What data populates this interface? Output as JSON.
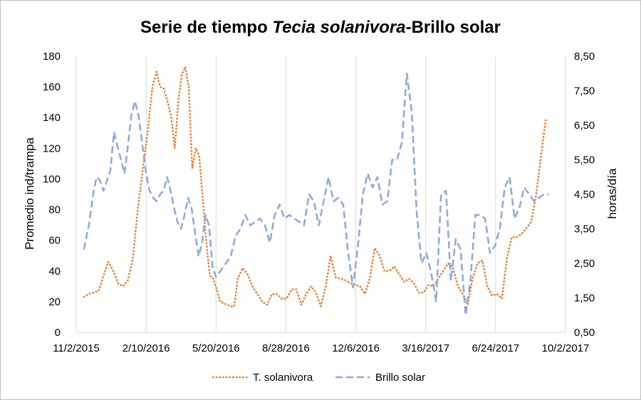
{
  "chart_data": {
    "type": "line",
    "title_prefix": "Serie de tiempo ",
    "title_italic": "Tecia solanivora",
    "title_suffix": "-Brillo solar",
    "ylabel_left": "Promedio ind/trampa",
    "ylabel_right": "horas/día",
    "x_axis": {
      "min": "2015-11-02",
      "max": "2017-10-02",
      "ticks": [
        {
          "date": "2015-11-02",
          "label": "11/2/2015"
        },
        {
          "date": "2016-02-10",
          "label": "2/10/2016"
        },
        {
          "date": "2016-05-20",
          "label": "5/20/2016"
        },
        {
          "date": "2016-08-28",
          "label": "8/28/2016"
        },
        {
          "date": "2016-12-06",
          "label": "12/6/2016"
        },
        {
          "date": "2017-03-16",
          "label": "3/16/2017"
        },
        {
          "date": "2017-06-24",
          "label": "6/24/2017"
        },
        {
          "date": "2017-10-02",
          "label": "10/2/2017"
        }
      ]
    },
    "y_left": {
      "min": 0,
      "max": 180,
      "ticks": [
        "0",
        "20",
        "40",
        "60",
        "80",
        "100",
        "120",
        "140",
        "160",
        "180"
      ]
    },
    "y_right": {
      "min": 0.5,
      "max": 8.5,
      "ticks": [
        "0,50",
        "1,50",
        "2,50",
        "3,50",
        "4,50",
        "5,50",
        "6,50",
        "7,50",
        "8,50"
      ]
    },
    "grid": "vertical",
    "legend_position": "bottom",
    "series": [
      {
        "name": "T. solanivora",
        "axis": "left",
        "color": "#ed7d31",
        "style": "dotted",
        "points": [
          [
            "2015-11-13",
            23
          ],
          [
            "2015-11-20",
            25
          ],
          [
            "2015-11-27",
            26
          ],
          [
            "2015-12-04",
            27
          ],
          [
            "2015-12-11",
            37
          ],
          [
            "2015-12-18",
            46
          ],
          [
            "2015-12-25",
            40
          ],
          [
            "2016-01-01",
            32
          ],
          [
            "2016-01-08",
            30
          ],
          [
            "2016-01-15",
            34
          ],
          [
            "2016-01-22",
            48
          ],
          [
            "2016-01-29",
            80
          ],
          [
            "2016-02-05",
            105
          ],
          [
            "2016-02-12",
            130
          ],
          [
            "2016-02-19",
            160
          ],
          [
            "2016-02-25",
            170
          ],
          [
            "2016-03-01",
            160
          ],
          [
            "2016-03-06",
            159
          ],
          [
            "2016-03-12",
            150
          ],
          [
            "2016-03-17",
            140
          ],
          [
            "2016-03-22",
            120
          ],
          [
            "2016-03-27",
            150
          ],
          [
            "2016-04-01",
            168
          ],
          [
            "2016-04-06",
            173
          ],
          [
            "2016-04-11",
            160
          ],
          [
            "2016-04-16",
            107
          ],
          [
            "2016-04-21",
            120
          ],
          [
            "2016-04-26",
            115
          ],
          [
            "2016-05-01",
            87
          ],
          [
            "2016-05-06",
            60
          ],
          [
            "2016-05-11",
            37
          ],
          [
            "2016-05-16",
            35
          ],
          [
            "2016-05-21",
            28
          ],
          [
            "2016-05-26",
            20
          ],
          [
            "2016-05-31",
            19
          ],
          [
            "2016-06-05",
            18
          ],
          [
            "2016-06-10",
            17
          ],
          [
            "2016-06-15",
            17
          ],
          [
            "2016-06-20",
            35
          ],
          [
            "2016-06-27",
            42
          ],
          [
            "2016-07-04",
            38
          ],
          [
            "2016-07-11",
            30
          ],
          [
            "2016-07-18",
            25
          ],
          [
            "2016-07-25",
            20
          ],
          [
            "2016-08-01",
            18
          ],
          [
            "2016-08-08",
            25
          ],
          [
            "2016-08-15",
            25
          ],
          [
            "2016-08-22",
            22
          ],
          [
            "2016-08-29",
            22
          ],
          [
            "2016-09-05",
            28
          ],
          [
            "2016-09-12",
            28
          ],
          [
            "2016-09-19",
            18
          ],
          [
            "2016-09-26",
            25
          ],
          [
            "2016-10-03",
            30
          ],
          [
            "2016-10-10",
            26
          ],
          [
            "2016-10-17",
            17
          ],
          [
            "2016-10-24",
            30
          ],
          [
            "2016-10-31",
            50
          ],
          [
            "2016-11-07",
            36
          ],
          [
            "2016-11-14",
            35
          ],
          [
            "2016-11-21",
            34
          ],
          [
            "2016-11-28",
            32
          ],
          [
            "2016-12-05",
            31
          ],
          [
            "2016-12-12",
            30
          ],
          [
            "2016-12-19",
            25
          ],
          [
            "2016-12-26",
            35
          ],
          [
            "2017-01-02",
            55
          ],
          [
            "2017-01-09",
            50
          ],
          [
            "2017-01-16",
            40
          ],
          [
            "2017-01-23",
            40
          ],
          [
            "2017-01-30",
            43
          ],
          [
            "2017-02-06",
            38
          ],
          [
            "2017-02-13",
            33
          ],
          [
            "2017-02-20",
            35
          ],
          [
            "2017-02-27",
            32
          ],
          [
            "2017-03-06",
            26
          ],
          [
            "2017-03-13",
            26
          ],
          [
            "2017-03-20",
            31
          ],
          [
            "2017-03-27",
            30
          ],
          [
            "2017-04-03",
            35
          ],
          [
            "2017-04-10",
            40
          ],
          [
            "2017-04-17",
            45
          ],
          [
            "2017-04-24",
            42
          ],
          [
            "2017-05-01",
            30
          ],
          [
            "2017-05-08",
            25
          ],
          [
            "2017-05-15",
            18
          ],
          [
            "2017-05-22",
            35
          ],
          [
            "2017-05-29",
            45
          ],
          [
            "2017-06-05",
            47
          ],
          [
            "2017-06-12",
            30
          ],
          [
            "2017-06-19",
            24
          ],
          [
            "2017-06-26",
            25
          ],
          [
            "2017-07-03",
            22
          ],
          [
            "2017-07-10",
            48
          ],
          [
            "2017-07-17",
            62
          ],
          [
            "2017-07-24",
            62
          ],
          [
            "2017-07-31",
            64
          ],
          [
            "2017-08-07",
            68
          ],
          [
            "2017-08-14",
            72
          ],
          [
            "2017-08-21",
            90
          ],
          [
            "2017-08-28",
            115
          ],
          [
            "2017-09-04",
            140
          ]
        ]
      },
      {
        "name": "Brillo solar",
        "axis": "right",
        "color": "#8faadc",
        "style": "dashed",
        "points": [
          [
            "2015-11-13",
            2.9
          ],
          [
            "2015-11-20",
            3.6
          ],
          [
            "2015-11-27",
            4.6
          ],
          [
            "2015-12-01",
            5.0
          ],
          [
            "2015-12-06",
            4.9
          ],
          [
            "2015-12-11",
            4.6
          ],
          [
            "2015-12-16",
            4.9
          ],
          [
            "2015-12-21",
            5.2
          ],
          [
            "2015-12-26",
            6.3
          ],
          [
            "2015-12-31",
            5.9
          ],
          [
            "2016-01-05",
            5.5
          ],
          [
            "2016-01-10",
            5.1
          ],
          [
            "2016-01-15",
            5.9
          ],
          [
            "2016-01-20",
            6.8
          ],
          [
            "2016-01-25",
            7.2
          ],
          [
            "2016-01-30",
            6.8
          ],
          [
            "2016-02-05",
            5.9
          ],
          [
            "2016-02-10",
            5.1
          ],
          [
            "2016-02-15",
            4.6
          ],
          [
            "2016-02-20",
            4.4
          ],
          [
            "2016-02-25",
            4.3
          ],
          [
            "2016-03-01",
            4.5
          ],
          [
            "2016-03-06",
            4.6
          ],
          [
            "2016-03-11",
            5.0
          ],
          [
            "2016-03-16",
            4.6
          ],
          [
            "2016-03-21",
            4.1
          ],
          [
            "2016-03-26",
            3.7
          ],
          [
            "2016-03-31",
            3.5
          ],
          [
            "2016-04-05",
            3.9
          ],
          [
            "2016-04-10",
            4.4
          ],
          [
            "2016-04-15",
            4.1
          ],
          [
            "2016-04-20",
            3.4
          ],
          [
            "2016-04-25",
            2.7
          ],
          [
            "2016-04-30",
            3.1
          ],
          [
            "2016-05-05",
            3.9
          ],
          [
            "2016-05-10",
            3.6
          ],
          [
            "2016-05-15",
            2.4
          ],
          [
            "2016-05-20",
            2.1
          ],
          [
            "2016-05-27",
            2.3
          ],
          [
            "2016-06-03",
            2.5
          ],
          [
            "2016-06-10",
            2.7
          ],
          [
            "2016-06-17",
            3.3
          ],
          [
            "2016-06-24",
            3.5
          ],
          [
            "2016-07-01",
            3.9
          ],
          [
            "2016-07-08",
            3.6
          ],
          [
            "2016-07-15",
            3.7
          ],
          [
            "2016-07-22",
            3.8
          ],
          [
            "2016-07-29",
            3.6
          ],
          [
            "2016-08-05",
            3.1
          ],
          [
            "2016-08-12",
            3.9
          ],
          [
            "2016-08-19",
            4.2
          ],
          [
            "2016-08-26",
            3.8
          ],
          [
            "2016-09-02",
            3.9
          ],
          [
            "2016-09-09",
            3.8
          ],
          [
            "2016-09-16",
            3.7
          ],
          [
            "2016-09-23",
            3.6
          ],
          [
            "2016-09-30",
            4.5
          ],
          [
            "2016-10-07",
            4.3
          ],
          [
            "2016-10-14",
            3.6
          ],
          [
            "2016-10-21",
            4.3
          ],
          [
            "2016-10-28",
            5.0
          ],
          [
            "2016-11-04",
            4.3
          ],
          [
            "2016-11-11",
            4.4
          ],
          [
            "2016-11-18",
            4.2
          ],
          [
            "2016-11-25",
            2.8
          ],
          [
            "2016-12-02",
            1.8
          ],
          [
            "2016-12-09",
            3.0
          ],
          [
            "2016-12-16",
            4.5
          ],
          [
            "2016-12-23",
            5.1
          ],
          [
            "2016-12-30",
            4.7
          ],
          [
            "2017-01-06",
            5.0
          ],
          [
            "2017-01-13",
            4.2
          ],
          [
            "2017-01-20",
            4.3
          ],
          [
            "2017-01-27",
            5.5
          ],
          [
            "2017-02-03",
            5.5
          ],
          [
            "2017-02-10",
            6.0
          ],
          [
            "2017-02-17",
            8.0
          ],
          [
            "2017-02-24",
            6.9
          ],
          [
            "2017-03-03",
            4.0
          ],
          [
            "2017-03-10",
            2.5
          ],
          [
            "2017-03-17",
            2.8
          ],
          [
            "2017-03-24",
            2.2
          ],
          [
            "2017-03-31",
            1.4
          ],
          [
            "2017-04-07",
            4.5
          ],
          [
            "2017-04-14",
            4.6
          ],
          [
            "2017-04-21",
            2.0
          ],
          [
            "2017-04-28",
            3.2
          ],
          [
            "2017-05-05",
            2.9
          ],
          [
            "2017-05-12",
            1.0
          ],
          [
            "2017-05-19",
            2.0
          ],
          [
            "2017-05-26",
            3.9
          ],
          [
            "2017-06-02",
            3.9
          ],
          [
            "2017-06-09",
            3.8
          ],
          [
            "2017-06-16",
            2.8
          ],
          [
            "2017-06-23",
            3.0
          ],
          [
            "2017-06-30",
            3.5
          ],
          [
            "2017-07-07",
            4.7
          ],
          [
            "2017-07-14",
            5.0
          ],
          [
            "2017-07-21",
            3.8
          ],
          [
            "2017-07-28",
            4.1
          ],
          [
            "2017-08-04",
            4.7
          ],
          [
            "2017-08-11",
            4.5
          ],
          [
            "2017-08-18",
            4.3
          ],
          [
            "2017-08-25",
            4.4
          ],
          [
            "2017-09-01",
            4.5
          ],
          [
            "2017-09-08",
            4.5
          ]
        ]
      }
    ]
  }
}
